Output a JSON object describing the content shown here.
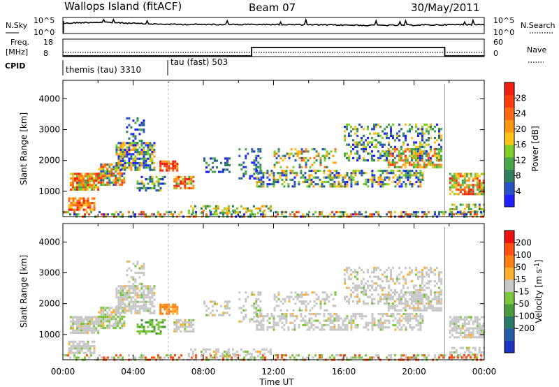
{
  "header": {
    "station": "Wallops Island (fitACF)",
    "beam": "Beam 07",
    "date": "30/May/2011"
  },
  "strip_labels": {
    "nsky": "N.Sky",
    "freq_top": "Freq.",
    "freq_unit": "[MHz]",
    "cpid": "CPID",
    "nsearch": "N.Search",
    "nave": "Nave"
  },
  "cpid_labels": [
    "themis (tau) 3310",
    "tau (fast) 503"
  ],
  "chart_data": [
    {
      "type": "line",
      "name": "noise-strip",
      "left_label": "N.Sky",
      "right_label": "N.Search",
      "yticks_left": [
        "10^5",
        "10^0"
      ],
      "yticks_right": [
        "10^5",
        "10^0"
      ]
    },
    {
      "type": "line",
      "name": "freq-nave-strip",
      "left_label": "Freq. [MHz]",
      "right_label": "Nave",
      "yticks_left": [
        18,
        8
      ],
      "yticks_right": [
        60,
        0
      ],
      "nave": {
        "x": [
          0,
          10.75,
          10.75,
          21.75,
          21.75,
          24
        ],
        "y": [
          0,
          0,
          33,
          33,
          0,
          0
        ]
      }
    },
    {
      "type": "heatmap",
      "name": "power",
      "xlabel": "",
      "ylabel": "Slant Range [km]",
      "xlim": [
        0,
        24
      ],
      "ylim": [
        180,
        4600
      ],
      "yticks": [
        1000,
        2000,
        3000,
        4000
      ],
      "colorbar": {
        "label": "Power [dB]",
        "ticks": [
          4,
          8,
          12,
          16,
          20,
          24,
          28
        ],
        "colors": [
          "#1f1fff",
          "#2a52c8",
          "#2f7f5e",
          "#4aa64a",
          "#7fcf2a",
          "#ffc21a",
          "#ff9614",
          "#ff6a10",
          "#ff3a0c",
          "#ee1e10"
        ]
      }
    },
    {
      "type": "heatmap",
      "name": "velocity",
      "xlabel": "Time UT",
      "ylabel": "Slant Range [km]",
      "xlim": [
        0,
        24
      ],
      "ylim": [
        180,
        4600
      ],
      "yticks": [
        1000,
        2000,
        3000,
        4000
      ],
      "xticks": [
        "00:00",
        "04:00",
        "08:00",
        "12:00",
        "16:00",
        "20:00",
        "00:00"
      ],
      "colorbar": {
        "label": "Velocity [m s",
        "unit_sup": "-1",
        "label_close": "]",
        "ticks": [
          200,
          100,
          50,
          15,
          -15,
          -50,
          -100,
          -200
        ],
        "colors": [
          "#2034c4",
          "#255ca8",
          "#2a7a6a",
          "#4a9c3a",
          "#7cc63c",
          "#c8c8c8",
          "#ffb030",
          "#ff8010",
          "#ff5010",
          "#ee1010"
        ]
      }
    }
  ]
}
